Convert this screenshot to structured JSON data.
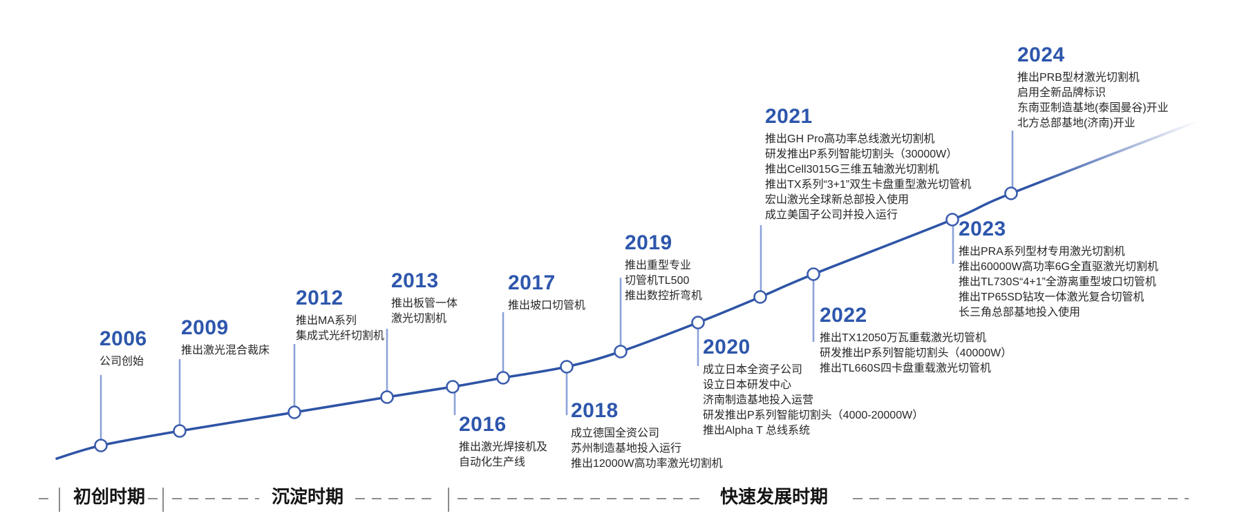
{
  "title": "公司发展历程时间轴",
  "colors": {
    "accent_blue": "#2d56ac",
    "curve_blue": "#2e54a6",
    "connector_blue": "#8ba2d8",
    "dot_stroke_blue": "#3a5cad",
    "body_text": "#272727",
    "axis_text": "#141414",
    "dash_gray": "#8c8c8c"
  },
  "timeline": {
    "milestones": [
      {
        "year": "2006",
        "lines": [
          "公司创始"
        ]
      },
      {
        "year": "2009",
        "lines": [
          "推出激光混合裁床"
        ]
      },
      {
        "year": "2012",
        "lines": [
          "推出MA系列",
          "集成式光纤切割机"
        ]
      },
      {
        "year": "2013",
        "lines": [
          "推出板管一体",
          "激光切割机"
        ]
      },
      {
        "year": "2016",
        "lines": [
          "推出激光焊接机及",
          "自动化生产线"
        ]
      },
      {
        "year": "2017",
        "lines": [
          "推出坡口切管机"
        ]
      },
      {
        "year": "2018",
        "lines": [
          "成立德国全资公司",
          "苏州制造基地投入运行",
          "推出12000W高功率激光切割机"
        ]
      },
      {
        "year": "2019",
        "lines": [
          "推出重型专业",
          "切管机TL500",
          "推出数控折弯机"
        ]
      },
      {
        "year": "2020",
        "lines": [
          "成立日本全资子公司",
          "设立日本研发中心",
          "济南制造基地投入运营",
          "研发推出P系列智能切割头（4000-20000W）",
          "推出Alpha T 总线系统"
        ]
      },
      {
        "year": "2021",
        "lines": [
          "推出GH Pro高功率总线激光切割机",
          "研发推出P系列智能切割头（30000W）",
          "推出Cell3015G三维五轴激光切割机",
          "推出TX系列“3+1”双生卡盘重型激光切管机",
          "宏山激光全球新总部投入使用",
          "成立美国子公司并投入运行"
        ]
      },
      {
        "year": "2022",
        "lines": [
          "推出TX12050万瓦重载激光切管机",
          "研发推出P系列智能切割头（40000W）",
          "推出TL660S四卡盘重载激光切管机"
        ]
      },
      {
        "year": "2023",
        "lines": [
          "推出PRA系列型材专用激光切割机",
          "推出60000W高功率6G全直驱激光切割机",
          "推出TL730S“4+1”全游离重型坡口切管机",
          "推出TP65SD钻攻一体激光复合切管机",
          "长三角总部基地投入使用"
        ]
      },
      {
        "year": "2024",
        "lines": [
          "推出PRB型材激光切割机",
          "启用全新品牌标识",
          "东南亚制造基地(泰国曼谷)开业",
          "北方总部基地(济南)开业"
        ]
      }
    ]
  },
  "phases": [
    {
      "label": "初创时期"
    },
    {
      "label": "沉淀时期"
    },
    {
      "label": "快速发展时期"
    }
  ]
}
